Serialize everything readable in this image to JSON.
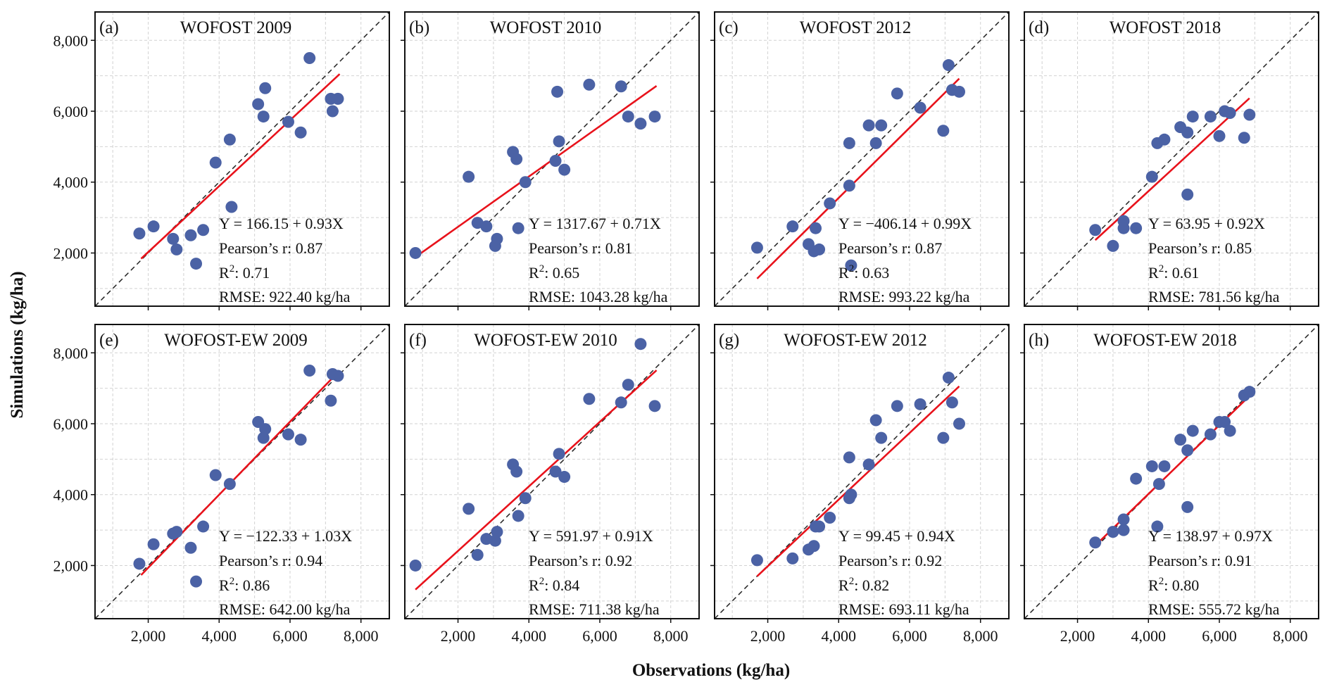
{
  "figure": {
    "xlabel": "Observations (kg/ha)",
    "ylabel": "Simulations (kg/ha)"
  },
  "colors": {
    "points": "#4b62a5",
    "fit_line": "#e8121b",
    "reference_line": "#222222",
    "grid": "#d2d2d2"
  },
  "chart_data": [
    {
      "type": "scatter",
      "panel": "(a)",
      "title": "WOFOST 2009",
      "xlim": [
        500,
        8800
      ],
      "ylim": [
        500,
        8800
      ],
      "xticks": [
        2000,
        4000,
        6000,
        8000
      ],
      "yticks": [
        2000,
        4000,
        6000,
        8000
      ],
      "xtick_labels": [
        "2,000",
        "4,000",
        "6,000",
        "8,000"
      ],
      "ytick_labels": [
        "2,000",
        "4,000",
        "6,000",
        "8,000"
      ],
      "reference_line": "1:1",
      "fit": {
        "intercept": 166.15,
        "slope": 0.93,
        "x_range": [
          1800,
          7400
        ]
      },
      "stats": {
        "equation": "Y = 166.15 + 0.93X",
        "pearson": "Pearson’s r: 0.87",
        "r2_prefix": "R",
        "r2_value": ": 0.71",
        "rmse": "RMSE: 922.40 kg/ha"
      },
      "points": [
        [
          1750,
          2550
        ],
        [
          2150,
          2750
        ],
        [
          2700,
          2400
        ],
        [
          2800,
          2100
        ],
        [
          3200,
          2500
        ],
        [
          3350,
          1700
        ],
        [
          3550,
          2650
        ],
        [
          3900,
          4550
        ],
        [
          4300,
          5200
        ],
        [
          4350,
          3300
        ],
        [
          5100,
          6200
        ],
        [
          5250,
          5850
        ],
        [
          5300,
          6650
        ],
        [
          5950,
          5700
        ],
        [
          6300,
          5400
        ],
        [
          6550,
          7500
        ],
        [
          7150,
          6350
        ],
        [
          7200,
          6000
        ],
        [
          7350,
          6350
        ]
      ]
    },
    {
      "type": "scatter",
      "panel": "(b)",
      "title": "WOFOST 2010",
      "xlim": [
        500,
        8800
      ],
      "ylim": [
        500,
        8800
      ],
      "xticks": [
        2000,
        4000,
        6000,
        8000
      ],
      "yticks": [
        2000,
        4000,
        6000,
        8000
      ],
      "xtick_labels": [
        "2,000",
        "4,000",
        "6,000",
        "8,000"
      ],
      "ytick_labels": [
        "2,000",
        "4,000",
        "6,000",
        "8,000"
      ],
      "reference_line": "1:1",
      "fit": {
        "intercept": 1317.67,
        "slope": 0.71,
        "x_range": [
          800,
          7600
        ]
      },
      "stats": {
        "equation": "Y = 1317.67 + 0.71X",
        "pearson": "Pearson’s r: 0.81",
        "r2_prefix": "R",
        "r2_value": ": 0.65",
        "rmse": "RMSE: 1043.28 kg/ha"
      },
      "points": [
        [
          800,
          2000
        ],
        [
          2300,
          4150
        ],
        [
          2550,
          2850
        ],
        [
          2800,
          2750
        ],
        [
          3050,
          2200
        ],
        [
          3100,
          2400
        ],
        [
          3550,
          4850
        ],
        [
          3650,
          4650
        ],
        [
          3700,
          2700
        ],
        [
          3900,
          4000
        ],
        [
          4750,
          4600
        ],
        [
          4800,
          6550
        ],
        [
          4850,
          5150
        ],
        [
          5000,
          4350
        ],
        [
          5700,
          6750
        ],
        [
          6600,
          6700
        ],
        [
          6800,
          5850
        ],
        [
          7150,
          5650
        ],
        [
          7550,
          5850
        ]
      ]
    },
    {
      "type": "scatter",
      "panel": "(c)",
      "title": "WOFOST 2012",
      "xlim": [
        500,
        8800
      ],
      "ylim": [
        500,
        8800
      ],
      "xticks": [
        2000,
        4000,
        6000,
        8000
      ],
      "yticks": [
        2000,
        4000,
        6000,
        8000
      ],
      "xtick_labels": [
        "2,000",
        "4,000",
        "6,000",
        "8,000"
      ],
      "ytick_labels": [
        "2,000",
        "4,000",
        "6,000",
        "8,000"
      ],
      "reference_line": "1:1",
      "fit": {
        "intercept": -406.14,
        "slope": 0.99,
        "x_range": [
          1700,
          7400
        ]
      },
      "stats": {
        "equation": "Y = −406.14 + 0.99X",
        "pearson": "Pearson’s r: 0.87",
        "r2_prefix": "R",
        "r2_value": ": 0.63",
        "rmse": "RMSE: 993.22 kg/ha"
      },
      "points": [
        [
          1700,
          2150
        ],
        [
          2700,
          2750
        ],
        [
          3150,
          2250
        ],
        [
          3300,
          2050
        ],
        [
          3350,
          2700
        ],
        [
          3450,
          2100
        ],
        [
          3750,
          3400
        ],
        [
          4300,
          5100
        ],
        [
          4300,
          3900
        ],
        [
          4350,
          1650
        ],
        [
          4850,
          5600
        ],
        [
          5050,
          5100
        ],
        [
          5200,
          5600
        ],
        [
          5650,
          6500
        ],
        [
          6300,
          6100
        ],
        [
          6950,
          5450
        ],
        [
          7100,
          7300
        ],
        [
          7200,
          6600
        ],
        [
          7400,
          6550
        ]
      ]
    },
    {
      "type": "scatter",
      "panel": "(d)",
      "title": "WOFOST 2018",
      "xlim": [
        500,
        8800
      ],
      "ylim": [
        500,
        8800
      ],
      "xticks": [
        2000,
        4000,
        6000,
        8000
      ],
      "yticks": [
        2000,
        4000,
        6000,
        8000
      ],
      "xtick_labels": [
        "2,000",
        "4,000",
        "6,000",
        "8,000"
      ],
      "ytick_labels": [
        "2,000",
        "4,000",
        "6,000",
        "8,000"
      ],
      "reference_line": "1:1",
      "fit": {
        "intercept": 63.95,
        "slope": 0.92,
        "x_range": [
          2500,
          6850
        ]
      },
      "stats": {
        "equation": "Y = 63.95 + 0.92X",
        "pearson": "Pearson’s r: 0.85",
        "r2_prefix": "R",
        "r2_value": ": 0.61",
        "rmse": "RMSE: 781.56 kg/ha"
      },
      "points": [
        [
          2500,
          2650
        ],
        [
          3000,
          2200
        ],
        [
          3300,
          2900
        ],
        [
          3300,
          2700
        ],
        [
          3650,
          2700
        ],
        [
          4100,
          4150
        ],
        [
          4250,
          5100
        ],
        [
          4450,
          5200
        ],
        [
          4900,
          5550
        ],
        [
          5100,
          5400
        ],
        [
          5100,
          3650
        ],
        [
          5250,
          5850
        ],
        [
          5750,
          5850
        ],
        [
          6000,
          5300
        ],
        [
          6150,
          6000
        ],
        [
          6300,
          5950
        ],
        [
          6700,
          5250
        ],
        [
          6850,
          5900
        ]
      ]
    },
    {
      "type": "scatter",
      "panel": "(e)",
      "title": "WOFOST-EW 2009",
      "xlim": [
        500,
        8800
      ],
      "ylim": [
        500,
        8800
      ],
      "xticks": [
        2000,
        4000,
        6000,
        8000
      ],
      "yticks": [
        2000,
        4000,
        6000,
        8000
      ],
      "xtick_labels": [
        "2,000",
        "4,000",
        "6,000",
        "8,000"
      ],
      "ytick_labels": [
        "2,000",
        "4,000",
        "6,000",
        "8,000"
      ],
      "reference_line": "1:1",
      "fit": {
        "intercept": -122.33,
        "slope": 1.03,
        "x_range": [
          1800,
          7300
        ]
      },
      "stats": {
        "equation": "Y = −122.33 + 1.03X",
        "pearson": "Pearson’s r: 0.94",
        "r2_prefix": "R",
        "r2_value": ": 0.86",
        "rmse": "RMSE: 642.00 kg/ha"
      },
      "points": [
        [
          1750,
          2050
        ],
        [
          2150,
          2600
        ],
        [
          2700,
          2900
        ],
        [
          2800,
          2950
        ],
        [
          3200,
          2500
        ],
        [
          3350,
          1550
        ],
        [
          3550,
          3100
        ],
        [
          3900,
          4550
        ],
        [
          4300,
          4300
        ],
        [
          5100,
          6050
        ],
        [
          5250,
          5600
        ],
        [
          5300,
          5850
        ],
        [
          5950,
          5700
        ],
        [
          6300,
          5550
        ],
        [
          6550,
          7500
        ],
        [
          7150,
          6650
        ],
        [
          7200,
          7400
        ],
        [
          7350,
          7350
        ]
      ]
    },
    {
      "type": "scatter",
      "panel": "(f)",
      "title": "WOFOST-EW 2010",
      "xlim": [
        500,
        8800
      ],
      "ylim": [
        500,
        8800
      ],
      "xticks": [
        2000,
        4000,
        6000,
        8000
      ],
      "yticks": [
        2000,
        4000,
        6000,
        8000
      ],
      "xtick_labels": [
        "2,000",
        "4,000",
        "6,000",
        "8,000"
      ],
      "ytick_labels": [
        "2,000",
        "4,000",
        "6,000",
        "8,000"
      ],
      "reference_line": "1:1",
      "fit": {
        "intercept": 591.97,
        "slope": 0.91,
        "x_range": [
          800,
          7600
        ]
      },
      "stats": {
        "equation": "Y = 591.97 + 0.91X",
        "pearson": "Pearson’s r: 0.92",
        "r2_prefix": "R",
        "r2_value": ": 0.84",
        "rmse": "RMSE: 711.38 kg/ha"
      },
      "points": [
        [
          800,
          2000
        ],
        [
          2300,
          3600
        ],
        [
          2550,
          2300
        ],
        [
          2800,
          2750
        ],
        [
          3050,
          2700
        ],
        [
          3100,
          2950
        ],
        [
          3550,
          4850
        ],
        [
          3650,
          4650
        ],
        [
          3700,
          3400
        ],
        [
          3900,
          3900
        ],
        [
          4750,
          4650
        ],
        [
          4850,
          5150
        ],
        [
          5000,
          4500
        ],
        [
          5700,
          6700
        ],
        [
          6600,
          6600
        ],
        [
          6800,
          7100
        ],
        [
          7150,
          8250
        ],
        [
          7550,
          6500
        ]
      ]
    },
    {
      "type": "scatter",
      "panel": "(g)",
      "title": "WOFOST-EW 2012",
      "xlim": [
        500,
        8800
      ],
      "ylim": [
        500,
        8800
      ],
      "xticks": [
        2000,
        4000,
        6000,
        8000
      ],
      "yticks": [
        2000,
        4000,
        6000,
        8000
      ],
      "xtick_labels": [
        "2,000",
        "4,000",
        "6,000",
        "8,000"
      ],
      "ytick_labels": [
        "2,000",
        "4,000",
        "6,000",
        "8,000"
      ],
      "reference_line": "1:1",
      "fit": {
        "intercept": 99.45,
        "slope": 0.94,
        "x_range": [
          1700,
          7400
        ]
      },
      "stats": {
        "equation": "Y = 99.45 + 0.94X",
        "pearson": "Pearson’s r: 0.92",
        "r2_prefix": "R",
        "r2_value": ": 0.82",
        "rmse": "RMSE: 693.11 kg/ha"
      },
      "points": [
        [
          1700,
          2150
        ],
        [
          2700,
          2200
        ],
        [
          3150,
          2450
        ],
        [
          3300,
          2550
        ],
        [
          3350,
          3100
        ],
        [
          3450,
          3100
        ],
        [
          3750,
          3350
        ],
        [
          4300,
          5050
        ],
        [
          4300,
          3900
        ],
        [
          4350,
          4000
        ],
        [
          4850,
          4850
        ],
        [
          5050,
          6100
        ],
        [
          5200,
          5600
        ],
        [
          5650,
          6500
        ],
        [
          6300,
          6550
        ],
        [
          6950,
          5600
        ],
        [
          7100,
          7300
        ],
        [
          7200,
          6600
        ],
        [
          7400,
          6000
        ]
      ]
    },
    {
      "type": "scatter",
      "panel": "(h)",
      "title": "WOFOST-EW 2018",
      "xlim": [
        500,
        8800
      ],
      "ylim": [
        500,
        8800
      ],
      "xticks": [
        2000,
        4000,
        6000,
        8000
      ],
      "yticks": [
        2000,
        4000,
        6000,
        8000
      ],
      "xtick_labels": [
        "2,000",
        "4,000",
        "6,000",
        "8,000"
      ],
      "ytick_labels": [
        "2,000",
        "4,000",
        "6,000",
        "8,000"
      ],
      "reference_line": "1:1",
      "fit": {
        "intercept": 138.97,
        "slope": 0.97,
        "x_range": [
          2500,
          6850
        ]
      },
      "stats": {
        "equation": "Y = 138.97 + 0.97X",
        "pearson": "Pearson’s r: 0.91",
        "r2_prefix": "R",
        "r2_value": ": 0.80",
        "rmse": "RMSE: 555.72 kg/ha"
      },
      "points": [
        [
          2500,
          2650
        ],
        [
          3000,
          2950
        ],
        [
          3300,
          3000
        ],
        [
          3300,
          3300
        ],
        [
          3650,
          4450
        ],
        [
          4100,
          4800
        ],
        [
          4250,
          3100
        ],
        [
          4300,
          4300
        ],
        [
          4450,
          4800
        ],
        [
          4900,
          5550
        ],
        [
          5100,
          3650
        ],
        [
          5100,
          5250
        ],
        [
          5250,
          5800
        ],
        [
          5750,
          5700
        ],
        [
          6000,
          6050
        ],
        [
          6150,
          6050
        ],
        [
          6300,
          5800
        ],
        [
          6700,
          6800
        ],
        [
          6850,
          6900
        ]
      ]
    }
  ]
}
